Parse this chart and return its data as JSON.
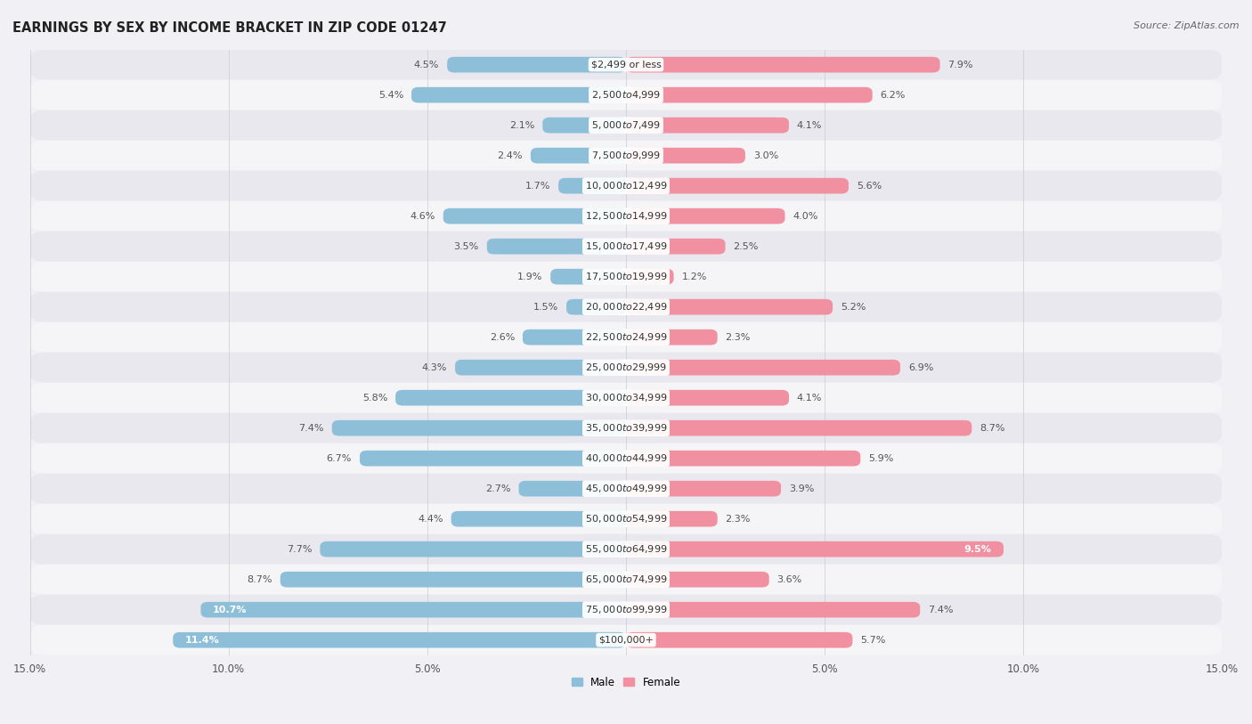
{
  "title": "EARNINGS BY SEX BY INCOME BRACKET IN ZIP CODE 01247",
  "source": "Source: ZipAtlas.com",
  "categories": [
    "$2,499 or less",
    "$2,500 to $4,999",
    "$5,000 to $7,499",
    "$7,500 to $9,999",
    "$10,000 to $12,499",
    "$12,500 to $14,999",
    "$15,000 to $17,499",
    "$17,500 to $19,999",
    "$20,000 to $22,499",
    "$22,500 to $24,999",
    "$25,000 to $29,999",
    "$30,000 to $34,999",
    "$35,000 to $39,999",
    "$40,000 to $44,999",
    "$45,000 to $49,999",
    "$50,000 to $54,999",
    "$55,000 to $64,999",
    "$65,000 to $74,999",
    "$75,000 to $99,999",
    "$100,000+"
  ],
  "male_values": [
    4.5,
    5.4,
    2.1,
    2.4,
    1.7,
    4.6,
    3.5,
    1.9,
    1.5,
    2.6,
    4.3,
    5.8,
    7.4,
    6.7,
    2.7,
    4.4,
    7.7,
    8.7,
    10.7,
    11.4
  ],
  "female_values": [
    7.9,
    6.2,
    4.1,
    3.0,
    5.6,
    4.0,
    2.5,
    1.2,
    5.2,
    2.3,
    6.9,
    4.1,
    8.7,
    5.9,
    3.9,
    2.3,
    9.5,
    3.6,
    7.4,
    5.7
  ],
  "male_color": "#8dbfd8",
  "female_color": "#f090a0",
  "male_label": "Male",
  "female_label": "Female",
  "xlim": 15.0,
  "row_colors": [
    "#e8e8ee",
    "#f5f5f8"
  ],
  "bar_bg_color": "#ffffff",
  "title_fontsize": 10.5,
  "source_fontsize": 8,
  "label_fontsize": 8,
  "tick_fontsize": 8.5,
  "value_fontsize": 8,
  "cat_fontsize": 8
}
